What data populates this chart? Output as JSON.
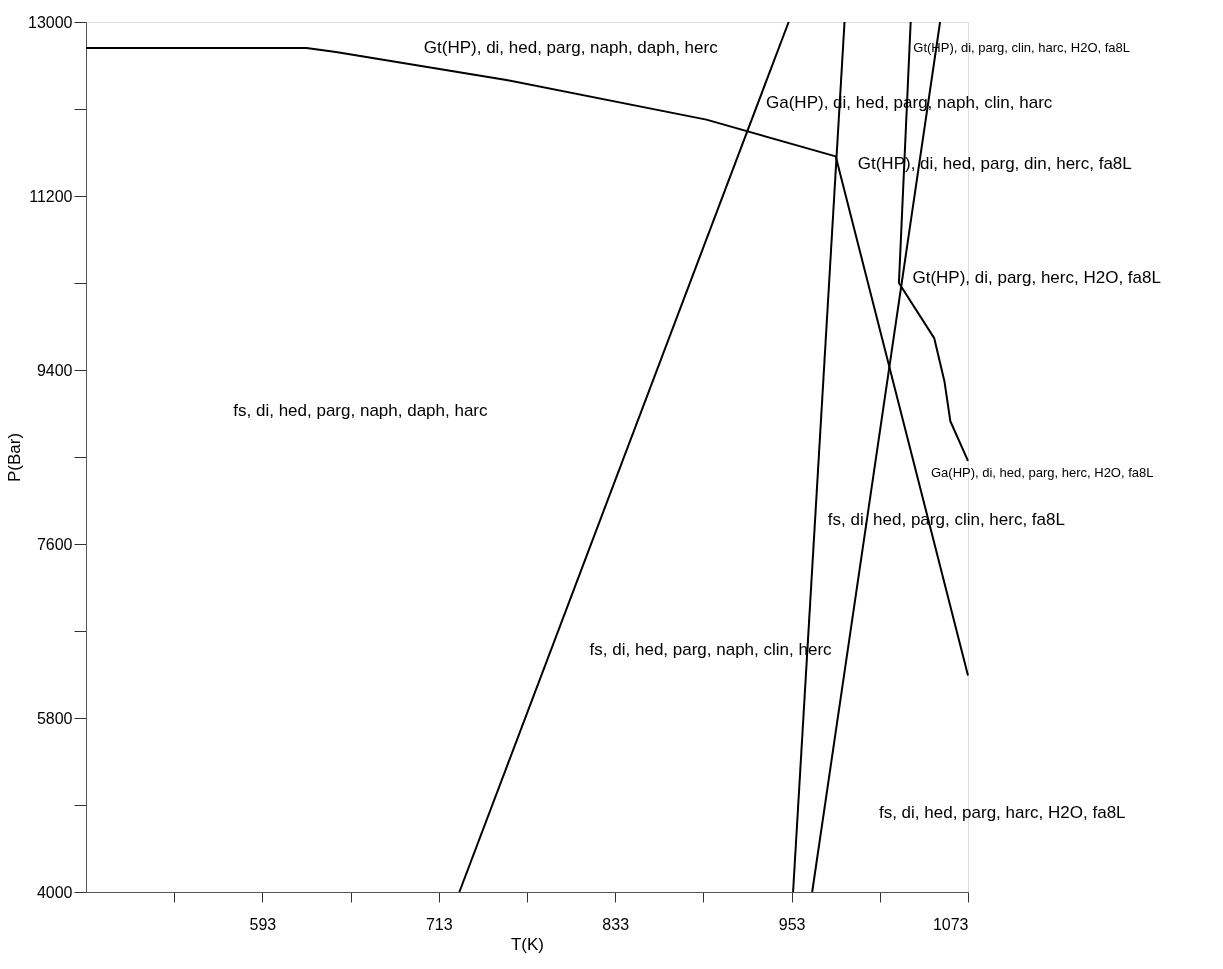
{
  "chart_data": {
    "type": "line",
    "xlabel": "T(K)",
    "ylabel": "P(Bar)",
    "xlim": [
      473,
      1073
    ],
    "ylim": [
      4000,
      13000
    ],
    "xticks": [
      {
        "value": 533,
        "label": null
      },
      593,
      {
        "value": 653,
        "label": null
      },
      713,
      {
        "value": 773,
        "label": null
      },
      833,
      {
        "value": 893,
        "label": null
      },
      953,
      {
        "value": 1013,
        "label": null
      },
      1073
    ],
    "yticks": [
      4000,
      {
        "value": 4900,
        "label": null
      },
      5800,
      {
        "value": 6700,
        "label": null
      },
      7600,
      {
        "value": 8500,
        "label": null
      },
      9400,
      {
        "value": 10300,
        "label": null
      },
      11200,
      {
        "value": 12100,
        "label": null
      },
      13000
    ],
    "grid": false,
    "legend": false,
    "marker": "none",
    "line_style": "solid",
    "series": [
      {
        "color": "#000000",
        "x": [
          473,
          623,
          643,
          759,
          895,
          983,
          1073
        ],
        "values": [
          12730,
          12730,
          12690,
          12400,
          11990,
          11610,
          6240
        ]
      },
      {
        "color": "#000000",
        "x": [
          727,
          951
        ],
        "values": [
          4000,
          13000
        ]
      },
      {
        "color": "#000000",
        "x": [
          989,
          954
        ],
        "values": [
          13000,
          4000
        ]
      },
      {
        "color": "#000000",
        "x": [
          1054,
          967
        ],
        "values": [
          13000,
          4000
        ]
      },
      {
        "color": "#000000",
        "x": [
          1034,
          1026,
          1050,
          1057,
          1061,
          1073
        ],
        "values": [
          13000,
          10300,
          9730,
          9280,
          8870,
          8460
        ]
      }
    ],
    "annotations": [
      "Gt(HP), di, hed, parg, naph, daph, herc",
      "Gt(HP), di, parg, clin, harc, H2O, fa8L",
      "Ga(HP), di, hed, parg, naph, clin, harc",
      "Gt(HP), di, hed, parg, din, herc, fa8L",
      "Gt(HP), di, parg, herc, H2O, fa8L",
      "fs, di, hed, parg, naph, daph, harc",
      "Ga(HP), di, hed, parg, herc, H2O, fa8L",
      "fs, di, hed, parg, clin, herc, fa8L",
      "fs, di, hed, parg, naph, clin, herc",
      "fs, di, hed, parg, harc, H2O, fa8L"
    ]
  }
}
